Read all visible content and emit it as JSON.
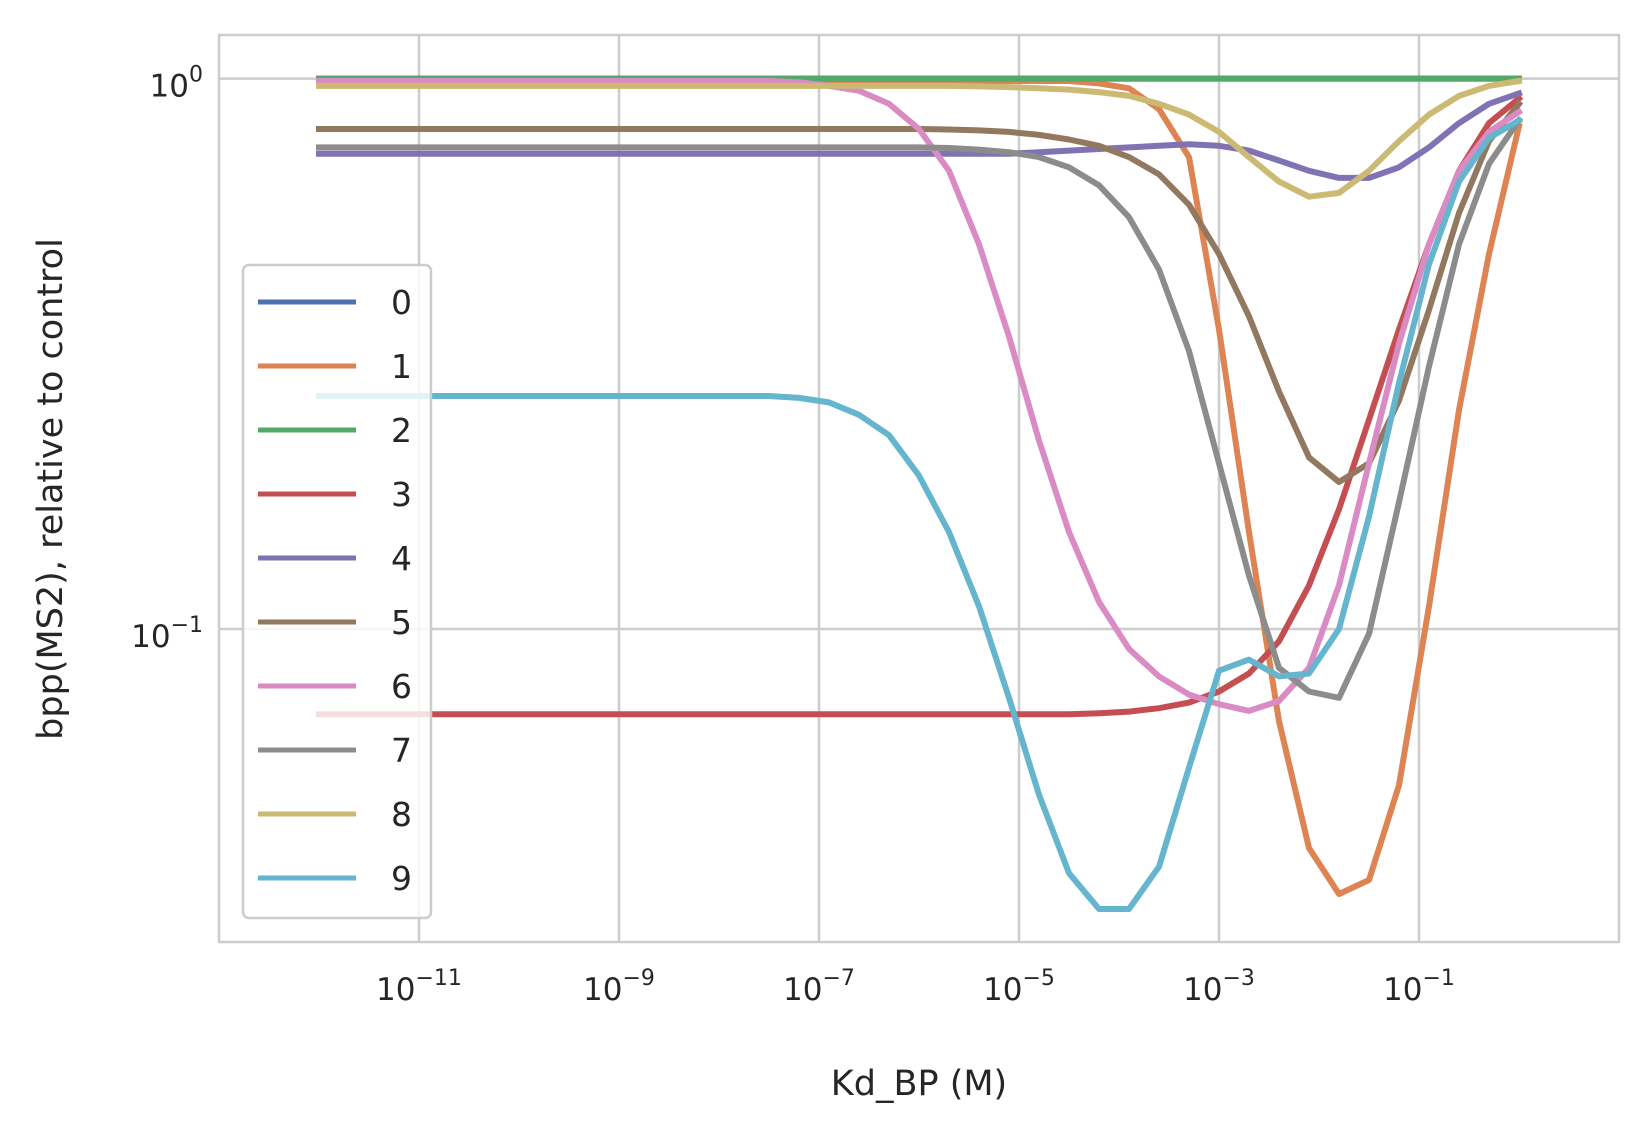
{
  "chart_data": {
    "type": "line",
    "xlabel": "Kd_BP (M)",
    "ylabel": "bpp(MS2), relative to control",
    "xscale": "log",
    "yscale": "log",
    "xlim": [
      1e-13,
      10
    ],
    "ylim": [
      0.027,
      1.2
    ],
    "grid": true,
    "legend_position": "center-left",
    "x_ticks": [
      {
        "value": 1e-11,
        "base": "10",
        "exp": "−11"
      },
      {
        "value": 1e-09,
        "base": "10",
        "exp": "−9"
      },
      {
        "value": 1e-07,
        "base": "10",
        "exp": "−7"
      },
      {
        "value": 1e-05,
        "base": "10",
        "exp": "−5"
      },
      {
        "value": 0.001,
        "base": "10",
        "exp": "−3"
      },
      {
        "value": 0.1,
        "base": "10",
        "exp": "−1"
      }
    ],
    "y_ticks": [
      {
        "value": 1,
        "base": "10",
        "exp": "0"
      },
      {
        "value": 0.1,
        "base": "10",
        "exp": "−1"
      }
    ],
    "log10_x": [
      -12,
      -11.7,
      -11.4,
      -11.1,
      -10.8,
      -10.5,
      -10.2,
      -9.9,
      -9.6,
      -9.3,
      -9,
      -8.7,
      -8.4,
      -8.1,
      -7.8,
      -7.5,
      -7.2,
      -6.9,
      -6.6,
      -6.3,
      -6,
      -5.7,
      -5.4,
      -5.1,
      -4.8,
      -4.5,
      -4.2,
      -3.9,
      -3.6,
      -3.3,
      -3,
      -2.7,
      -2.4,
      -2.1,
      -1.8,
      -1.5,
      -1.2,
      -0.9,
      -0.6,
      -0.3,
      0
    ],
    "series": [
      {
        "name": "0",
        "color": "#4c72b0",
        "values": [
          1.0,
          1.0,
          1.0,
          1.0,
          1.0,
          1.0,
          1.0,
          1.0,
          1.0,
          1.0,
          1.0,
          1.0,
          1.0,
          1.0,
          1.0,
          1.0,
          1.0,
          1.0,
          1.0,
          1.0,
          1.0,
          1.0,
          1.0,
          1.0,
          1.0,
          1.0,
          1.0,
          1.0,
          1.0,
          1.0,
          1.0,
          1.0,
          1.0,
          1.0,
          1.0,
          1.0,
          1.0,
          1.0,
          1.0,
          1.0,
          1.0
        ]
      },
      {
        "name": "1",
        "color": "#dd8452",
        "values": [
          0.99,
          0.99,
          0.99,
          0.99,
          0.99,
          0.99,
          0.99,
          0.99,
          0.99,
          0.99,
          0.99,
          0.99,
          0.99,
          0.99,
          0.99,
          0.99,
          0.99,
          0.99,
          0.99,
          0.99,
          0.99,
          0.99,
          0.99,
          0.99,
          0.99,
          0.99,
          0.98,
          0.96,
          0.88,
          0.72,
          0.35,
          0.15,
          0.068,
          0.04,
          0.033,
          0.035,
          0.052,
          0.11,
          0.25,
          0.48,
          0.82
        ]
      },
      {
        "name": "2",
        "color": "#55a868",
        "values": [
          1.0,
          1.0,
          1.0,
          1.0,
          1.0,
          1.0,
          1.0,
          1.0,
          1.0,
          1.0,
          1.0,
          1.0,
          1.0,
          1.0,
          1.0,
          1.0,
          1.0,
          1.0,
          1.0,
          1.0,
          1.0,
          1.0,
          1.0,
          1.0,
          1.0,
          1.0,
          1.0,
          1.0,
          1.0,
          1.0,
          1.0,
          1.0,
          1.0,
          1.0,
          1.0,
          1.0,
          1.0,
          1.0,
          1.0,
          1.0,
          1.0
        ]
      },
      {
        "name": "3",
        "color": "#c44e52",
        "values": [
          0.07,
          0.07,
          0.07,
          0.07,
          0.07,
          0.07,
          0.07,
          0.07,
          0.07,
          0.07,
          0.07,
          0.07,
          0.07,
          0.07,
          0.07,
          0.07,
          0.07,
          0.07,
          0.07,
          0.07,
          0.07,
          0.07,
          0.07,
          0.07,
          0.07,
          0.07,
          0.0703,
          0.0708,
          0.0718,
          0.0735,
          0.077,
          0.083,
          0.095,
          0.12,
          0.165,
          0.24,
          0.35,
          0.5,
          0.68,
          0.83,
          0.92
        ]
      },
      {
        "name": "4",
        "color": "#8172b3",
        "values": [
          0.73,
          0.73,
          0.73,
          0.73,
          0.73,
          0.73,
          0.73,
          0.73,
          0.73,
          0.73,
          0.73,
          0.73,
          0.73,
          0.73,
          0.73,
          0.73,
          0.73,
          0.73,
          0.73,
          0.73,
          0.73,
          0.73,
          0.73,
          0.73,
          0.735,
          0.74,
          0.745,
          0.75,
          0.755,
          0.76,
          0.755,
          0.74,
          0.71,
          0.68,
          0.66,
          0.66,
          0.69,
          0.75,
          0.83,
          0.9,
          0.94
        ]
      },
      {
        "name": "5",
        "color": "#937860",
        "values": [
          0.81,
          0.81,
          0.81,
          0.81,
          0.81,
          0.81,
          0.81,
          0.81,
          0.81,
          0.81,
          0.81,
          0.81,
          0.81,
          0.81,
          0.81,
          0.81,
          0.81,
          0.81,
          0.81,
          0.81,
          0.81,
          0.808,
          0.805,
          0.8,
          0.79,
          0.775,
          0.755,
          0.72,
          0.67,
          0.59,
          0.48,
          0.37,
          0.27,
          0.205,
          0.185,
          0.2,
          0.26,
          0.38,
          0.57,
          0.77,
          0.9
        ]
      },
      {
        "name": "6",
        "color": "#da8bc3",
        "values": [
          0.99,
          0.99,
          0.99,
          0.99,
          0.99,
          0.99,
          0.99,
          0.99,
          0.99,
          0.99,
          0.99,
          0.99,
          0.99,
          0.99,
          0.99,
          0.99,
          0.985,
          0.97,
          0.95,
          0.9,
          0.81,
          0.68,
          0.5,
          0.34,
          0.22,
          0.15,
          0.112,
          0.092,
          0.082,
          0.076,
          0.073,
          0.071,
          0.074,
          0.085,
          0.12,
          0.2,
          0.33,
          0.5,
          0.68,
          0.8,
          0.87
        ]
      },
      {
        "name": "7",
        "color": "#8c8c8c",
        "values": [
          0.75,
          0.75,
          0.75,
          0.75,
          0.75,
          0.75,
          0.75,
          0.75,
          0.75,
          0.75,
          0.75,
          0.75,
          0.75,
          0.75,
          0.75,
          0.75,
          0.75,
          0.75,
          0.75,
          0.75,
          0.75,
          0.748,
          0.743,
          0.735,
          0.72,
          0.69,
          0.64,
          0.56,
          0.45,
          0.32,
          0.2,
          0.125,
          0.085,
          0.077,
          0.075,
          0.098,
          0.17,
          0.3,
          0.5,
          0.7,
          0.84
        ]
      },
      {
        "name": "8",
        "color": "#ccb974",
        "values": [
          0.97,
          0.97,
          0.97,
          0.97,
          0.97,
          0.97,
          0.97,
          0.97,
          0.97,
          0.97,
          0.97,
          0.97,
          0.97,
          0.97,
          0.97,
          0.97,
          0.97,
          0.97,
          0.97,
          0.97,
          0.97,
          0.97,
          0.968,
          0.965,
          0.96,
          0.955,
          0.945,
          0.93,
          0.9,
          0.86,
          0.8,
          0.72,
          0.65,
          0.61,
          0.62,
          0.68,
          0.77,
          0.86,
          0.93,
          0.97,
          0.99
        ]
      },
      {
        "name": "9",
        "color": "#64b5cd",
        "values": [
          0.265,
          0.265,
          0.265,
          0.265,
          0.265,
          0.265,
          0.265,
          0.265,
          0.265,
          0.265,
          0.265,
          0.265,
          0.265,
          0.265,
          0.265,
          0.265,
          0.263,
          0.258,
          0.245,
          0.225,
          0.19,
          0.15,
          0.11,
          0.075,
          0.05,
          0.036,
          0.031,
          0.031,
          0.037,
          0.056,
          0.084,
          0.088,
          0.082,
          0.083,
          0.1,
          0.16,
          0.28,
          0.46,
          0.65,
          0.78,
          0.84
        ]
      }
    ]
  }
}
